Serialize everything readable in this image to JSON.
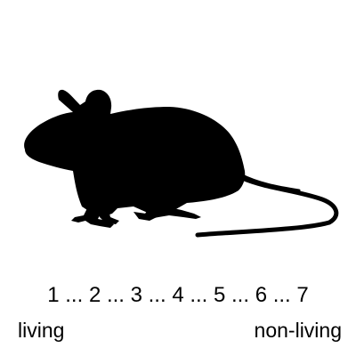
{
  "stimulus": {
    "subject": "mouse-silhouette",
    "fill_color": "#000000",
    "background_color": "#ffffff"
  },
  "scale": {
    "label": "1 ... 2 ... 3 ... 4 ... 5 ... 6 ... 7",
    "points": [
      1,
      2,
      3,
      4,
      5,
      6,
      7
    ],
    "left_anchor": "living",
    "right_anchor": "non-living"
  }
}
